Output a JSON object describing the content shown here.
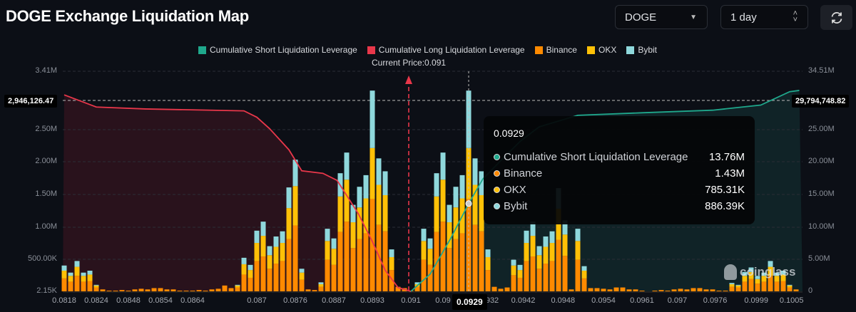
{
  "header": {
    "title": "DOGE Exchange Liquidation Map",
    "coin_select": "DOGE",
    "range_select": "1 day",
    "refresh_icon": "refresh-icon"
  },
  "colors": {
    "short": "#1fa88c",
    "long": "#e8374a",
    "binance": "#ff8a00",
    "okx": "#ffc107",
    "bybit": "#8fd8dc",
    "background": "#0c0f16"
  },
  "current_price_label": "Current Price:0.091",
  "crosshair": {
    "left_value": "2,946,126.47",
    "right_value": "29,794,748.82",
    "x_value": "0.0929"
  },
  "tooltip": {
    "title": "0.0929",
    "rows": [
      {
        "label": "Cumulative Short Liquidation Leverage",
        "value": "13.76M",
        "color": "#1fa88c"
      },
      {
        "label": "Binance",
        "value": "1.43M",
        "color": "#ff8a00"
      },
      {
        "label": "OKX",
        "value": "785.31K",
        "color": "#ffc107"
      },
      {
        "label": "Bybit",
        "value": "886.39K",
        "color": "#8fd8dc"
      }
    ]
  },
  "watermark": "coinglass",
  "chart_data": {
    "type": "bar",
    "legend": [
      "Cumulative Short Liquidation Leverage",
      "Cumulative Long Liquidation Leverage",
      "Binance",
      "OKX",
      "Bybit"
    ],
    "legend_position": "top",
    "x_tick_labels": [
      "0.0818",
      "0.0824",
      "0.0848",
      "0.0854",
      "0.0864",
      "0.087",
      "0.0876",
      "0.0887",
      "0.0893",
      "0.091",
      "0.09",
      "0.0929",
      "932",
      "0.0942",
      "0.0948",
      "0.0954",
      "0.0961",
      "0.097",
      "0.0976",
      "0.0999",
      "0.1005"
    ],
    "left_axis": {
      "ticks": [
        "3.41M",
        "2.50M",
        "2.00M",
        "1.50M",
        "1.00M",
        "500.00K",
        "2.15K"
      ],
      "ylim": [
        0,
        3.41
      ],
      "unit": "M"
    },
    "right_axis": {
      "ticks": [
        "34.51M",
        "25.00M",
        "20.00M",
        "15.00M",
        "10.00M",
        "5.00M",
        "0"
      ],
      "ylim": [
        0,
        34.51
      ],
      "unit": "M"
    },
    "current_price": 0.091,
    "grid": true,
    "stacked_series": [
      {
        "name": "Binance",
        "values": [
          0.2,
          0.15,
          0.24,
          0.15,
          0.16,
          0.06,
          0.03,
          0.005,
          0.01,
          0.02,
          0.01,
          0.03,
          0.04,
          0.03,
          0.05,
          0.05,
          0.03,
          0.03,
          0.005,
          0.005,
          0.01,
          0.02,
          0.01,
          0.03,
          0.04,
          0.09,
          0.05,
          0.06,
          0.26,
          0.21,
          0.47,
          0.54,
          0.35,
          0.43,
          0.47,
          0.81,
          1.02,
          0.18,
          0.03,
          0.02,
          0.07,
          0.49,
          0.41,
          0.92,
          1.08,
          0.67,
          0.81,
          0.9,
          1.43,
          1.03,
          0.93,
          0.33,
          0.07,
          0.05,
          0.01,
          0.07,
          0.49,
          0.41,
          0.92,
          1.08,
          0.67,
          0.81,
          0.9,
          1.43,
          1.03,
          0.93,
          0.33,
          0.07,
          0.04,
          0.06,
          0.25,
          0.21,
          0.47,
          0.54,
          0.35,
          0.43,
          0.47,
          0.8,
          0.55,
          0.03,
          0.49,
          0.2,
          0.05,
          0.05,
          0.04,
          0.03,
          0.06,
          0.06,
          0.03,
          0.03,
          0.005,
          0,
          0.01,
          0.02,
          0.01,
          0.03,
          0.04,
          0.03,
          0.05,
          0.05,
          0.03,
          0.03,
          0.005,
          0.01,
          0.07,
          0.06,
          0.15,
          0.19,
          0.12,
          0.15,
          0.24,
          0.15,
          0.16,
          0.06,
          0.03
        ]
      },
      {
        "name": "OKX",
        "values": [
          0.12,
          0.09,
          0.14,
          0.09,
          0.1,
          0.03,
          0,
          0,
          0,
          0,
          0,
          0,
          0,
          0,
          0,
          0,
          0,
          0,
          0,
          0,
          0,
          0,
          0,
          0,
          0,
          0,
          0,
          0.03,
          0.16,
          0.12,
          0.28,
          0.32,
          0.21,
          0.26,
          0.28,
          0.48,
          0.61,
          0.11,
          0,
          0,
          0.04,
          0.29,
          0.25,
          0.55,
          0.65,
          0.4,
          0.49,
          0.54,
          0.79,
          0.62,
          0.56,
          0.2,
          0,
          0,
          0,
          0.04,
          0.29,
          0.25,
          0.55,
          0.65,
          0.4,
          0.49,
          0.54,
          0.79,
          0.62,
          0.56,
          0.2,
          0,
          0,
          0,
          0.15,
          0.12,
          0.28,
          0.32,
          0.21,
          0.26,
          0.28,
          0.48,
          0.33,
          0,
          0.29,
          0.12,
          0,
          0,
          0,
          0,
          0,
          0,
          0,
          0,
          0,
          0,
          0,
          0,
          0,
          0,
          0,
          0,
          0,
          0,
          0,
          0,
          0,
          0,
          0.04,
          0.03,
          0.09,
          0.11,
          0.07,
          0.09,
          0.14,
          0.09,
          0.1,
          0.03,
          0
        ]
      },
      {
        "name": "Bybit",
        "values": [
          0.08,
          0.05,
          0.09,
          0.05,
          0.06,
          0.01,
          0,
          0,
          0,
          0,
          0,
          0,
          0,
          0,
          0,
          0,
          0,
          0,
          0,
          0,
          0,
          0,
          0,
          0,
          0,
          0,
          0,
          0.01,
          0.1,
          0.08,
          0.19,
          0.22,
          0.14,
          0.16,
          0.18,
          0.32,
          0.41,
          0.06,
          0,
          0,
          0.03,
          0.19,
          0.16,
          0.36,
          0.42,
          0.27,
          0.32,
          0.36,
          0.89,
          0.41,
          0.37,
          0.12,
          0,
          0,
          0,
          0.03,
          0.19,
          0.16,
          0.36,
          0.42,
          0.27,
          0.32,
          0.36,
          0.89,
          0.41,
          0.37,
          0.12,
          0,
          0,
          0,
          0.09,
          0.08,
          0.19,
          0.22,
          0.14,
          0.16,
          0.18,
          0.32,
          0.22,
          0,
          0.19,
          0.07,
          0,
          0,
          0,
          0,
          0,
          0,
          0,
          0,
          0,
          0,
          0,
          0,
          0,
          0,
          0,
          0,
          0,
          0,
          0,
          0,
          0,
          0,
          0.02,
          0.01,
          0.06,
          0.07,
          0.05,
          0.05,
          0.09,
          0.05,
          0.06,
          0.01,
          0
        ]
      }
    ],
    "line_series": [
      {
        "name": "Cumulative Long Liquidation Leverage",
        "axis": "right",
        "points": [
          [
            0,
            30.8
          ],
          [
            5,
            28.9
          ],
          [
            12.6,
            28.6
          ],
          [
            28,
            28.3
          ],
          [
            30,
            27.3
          ],
          [
            32,
            25.5
          ],
          [
            35,
            22.2
          ],
          [
            37,
            18.9
          ],
          [
            40.3,
            18.5
          ],
          [
            42.5,
            17.4
          ],
          [
            45.8,
            12.2
          ],
          [
            48,
            7.8
          ],
          [
            50,
            3.3
          ],
          [
            52,
            0.6
          ],
          [
            54,
            0
          ]
        ]
      },
      {
        "name": "Cumulative Short Liquidation Leverage",
        "axis": "right",
        "points": [
          [
            54,
            0
          ],
          [
            57,
            2.7
          ],
          [
            60.2,
            8.3
          ],
          [
            63,
            13.76
          ],
          [
            65.2,
            17.6
          ],
          [
            68,
            20.5
          ],
          [
            71,
            23.5
          ],
          [
            74,
            25.8
          ],
          [
            80,
            27.6
          ],
          [
            90,
            28.0
          ],
          [
            101,
            28.4
          ],
          [
            108.5,
            29.2
          ],
          [
            113,
            31.3
          ],
          [
            114.5,
            31.5
          ]
        ]
      }
    ]
  }
}
